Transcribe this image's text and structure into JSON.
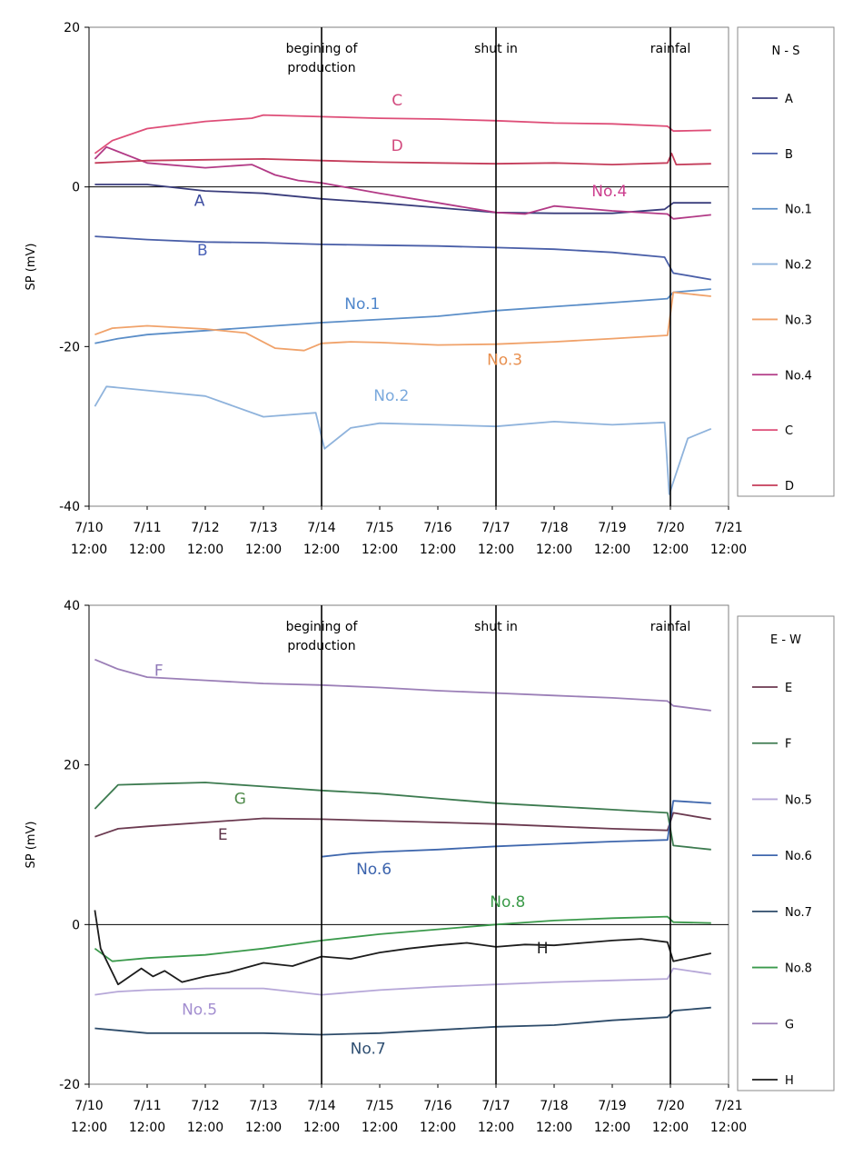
{
  "chart_data": [
    {
      "type": "line",
      "name": "N-S",
      "title": "",
      "xlabel": "",
      "ylabel": "SP (mV)",
      "ylim": [
        -40,
        20
      ],
      "yticks": [
        "20",
        "0",
        "-20",
        "-40"
      ],
      "xlim": [
        0,
        11
      ],
      "x_unit": "days from 7/10 12:00",
      "xticks": [
        {
          "date": "7/10",
          "time": "12:00"
        },
        {
          "date": "7/11",
          "time": "12:00"
        },
        {
          "date": "7/12",
          "time": "12:00"
        },
        {
          "date": "7/13",
          "time": "12:00"
        },
        {
          "date": "7/14",
          "time": "12:00"
        },
        {
          "date": "7/15",
          "time": "12:00"
        },
        {
          "date": "7/16",
          "time": "12:00"
        },
        {
          "date": "7/17",
          "time": "12:00"
        },
        {
          "date": "7/18",
          "time": "12:00"
        },
        {
          "date": "7/19",
          "time": "12:00"
        },
        {
          "date": "7/20",
          "time": "12:00"
        },
        {
          "date": "7/21",
          "time": "12:00"
        }
      ],
      "events": [
        {
          "x": 4,
          "label": [
            "begining of",
            "production"
          ]
        },
        {
          "x": 7,
          "label": [
            "shut in"
          ]
        },
        {
          "x": 10,
          "label": [
            "rainfal"
          ]
        }
      ],
      "legend": {
        "title": "N - S",
        "placement": "right"
      },
      "series": [
        {
          "name": "A",
          "color": "#3a3d7c",
          "x": [
            0.1,
            1,
            2,
            3,
            4,
            5,
            6,
            7,
            8,
            9,
            9.9,
            10.05,
            10.7
          ],
          "y": [
            0.3,
            0.3,
            -0.5,
            -0.8,
            -1.5,
            -2,
            -2.6,
            -3.2,
            -3.3,
            -3.3,
            -2.8,
            -2,
            -2
          ]
        },
        {
          "name": "B",
          "color": "#4a5fa8",
          "x": [
            0.1,
            1,
            2,
            3,
            4,
            5,
            6,
            7,
            8,
            9,
            9.9,
            10.05,
            10.7
          ],
          "y": [
            -6.2,
            -6.6,
            -6.9,
            -7,
            -7.2,
            -7.3,
            -7.4,
            -7.6,
            -7.8,
            -8.2,
            -8.8,
            -10.8,
            -11.6
          ]
        },
        {
          "name": "No.1",
          "color": "#5b8ec8",
          "x": [
            0.1,
            0.5,
            1,
            2,
            3,
            4,
            5,
            6,
            7,
            8,
            9,
            9.95,
            10.05,
            10.7
          ],
          "y": [
            -19.6,
            -19,
            -18.5,
            -18,
            -17.5,
            -17,
            -16.6,
            -16.2,
            -15.5,
            -15,
            -14.5,
            -14,
            -13.2,
            -12.8
          ]
        },
        {
          "name": "No.2",
          "color": "#8fb3dc",
          "x": [
            0.1,
            0.3,
            1,
            2,
            3,
            3.9,
            4.05,
            4.5,
            5,
            6,
            7,
            8,
            9,
            9.9,
            9.98,
            10.3,
            10.7
          ],
          "y": [
            -27.5,
            -25,
            -25.5,
            -26.2,
            -28.8,
            -28.3,
            -32.8,
            -30.2,
            -29.6,
            -29.8,
            -30,
            -29.4,
            -29.8,
            -29.5,
            -38.5,
            -31.5,
            -30.3
          ]
        },
        {
          "name": "No.3",
          "color": "#f0a26a",
          "x": [
            0.1,
            0.4,
            1,
            2,
            2.7,
            3.2,
            3.7,
            4,
            4.5,
            5,
            6,
            7,
            8,
            9,
            9.95,
            10.05,
            10.7
          ],
          "y": [
            -18.5,
            -17.7,
            -17.4,
            -17.8,
            -18.3,
            -20.2,
            -20.5,
            -19.6,
            -19.4,
            -19.5,
            -19.8,
            -19.7,
            -19.4,
            -19,
            -18.6,
            -13.2,
            -13.7
          ]
        },
        {
          "name": "No.4",
          "color": "#b23a86",
          "x": [
            0.1,
            0.3,
            1,
            2,
            2.8,
            3.2,
            3.6,
            4,
            5,
            6,
            7,
            7.5,
            8,
            9,
            9.95,
            10.05,
            10.7
          ],
          "y": [
            3.5,
            5,
            3,
            2.4,
            2.8,
            1.5,
            0.8,
            0.5,
            -0.8,
            -2,
            -3.2,
            -3.4,
            -2.4,
            -3,
            -3.4,
            -4,
            -3.5
          ]
        },
        {
          "name": "C",
          "color": "#de4e78",
          "x": [
            0.1,
            0.4,
            1,
            2,
            2.8,
            3,
            4,
            5,
            6,
            7,
            8,
            9,
            9.95,
            10.05,
            10.7
          ],
          "y": [
            4.2,
            5.8,
            7.3,
            8.2,
            8.6,
            9,
            8.8,
            8.6,
            8.5,
            8.3,
            8,
            7.9,
            7.6,
            7,
            7.1
          ]
        },
        {
          "name": "D",
          "color": "#c43c5a",
          "x": [
            0.1,
            1,
            2,
            3,
            4,
            5,
            6,
            7,
            8,
            9,
            9.95,
            10.02,
            10.1,
            10.7
          ],
          "y": [
            3,
            3.3,
            3.4,
            3.5,
            3.3,
            3.1,
            3,
            2.9,
            3,
            2.8,
            3,
            4.2,
            2.8,
            2.9
          ]
        }
      ],
      "labels": [
        {
          "text": "C",
          "x": 5.3,
          "y": 10.2,
          "color": "#d24a7e"
        },
        {
          "text": "D",
          "x": 5.3,
          "y": 4.5,
          "color": "#d24a7e"
        },
        {
          "text": "A",
          "x": 1.9,
          "y": -2.4,
          "color": "#3c4ca0"
        },
        {
          "text": "B",
          "x": 1.95,
          "y": -8.6,
          "color": "#4a62b8"
        },
        {
          "text": "No.4",
          "x": 8.95,
          "y": -1.2,
          "color": "#cc3e8e"
        },
        {
          "text": "No.1",
          "x": 4.7,
          "y": -15.3,
          "color": "#4f86cb"
        },
        {
          "text": "No.3",
          "x": 7.15,
          "y": -22.3,
          "color": "#e88f4e"
        },
        {
          "text": "No.2",
          "x": 5.2,
          "y": -26.8,
          "color": "#7aa9dd"
        }
      ]
    },
    {
      "type": "line",
      "name": "E-W",
      "title": "",
      "xlabel": "",
      "ylabel": "SP (mV)",
      "ylim": [
        -20,
        40
      ],
      "yticks": [
        "40",
        "20",
        "0",
        "-20"
      ],
      "xlim": [
        0,
        11
      ],
      "x_unit": "days from 7/10 12:00",
      "xticks": [
        {
          "date": "7/10",
          "time": "12:00"
        },
        {
          "date": "7/11",
          "time": "12:00"
        },
        {
          "date": "7/12",
          "time": "12:00"
        },
        {
          "date": "7/13",
          "time": "12:00"
        },
        {
          "date": "7/14",
          "time": "12:00"
        },
        {
          "date": "7/15",
          "time": "12:00"
        },
        {
          "date": "7/16",
          "time": "12:00"
        },
        {
          "date": "7/17",
          "time": "12:00"
        },
        {
          "date": "7/18",
          "time": "12:00"
        },
        {
          "date": "7/19",
          "time": "12:00"
        },
        {
          "date": "7/20",
          "time": "12:00"
        },
        {
          "date": "7/21",
          "time": "12:00"
        }
      ],
      "events": [
        {
          "x": 4,
          "label": [
            "begining of",
            "production"
          ]
        },
        {
          "x": 7,
          "label": [
            "shut in"
          ]
        },
        {
          "x": 10,
          "label": [
            "rainfal"
          ]
        }
      ],
      "legend": {
        "title": "E - W",
        "placement": "right"
      },
      "series": [
        {
          "name": "E",
          "color": "#6b3a50",
          "x": [
            0.1,
            0.5,
            1,
            2,
            3,
            4,
            5,
            6,
            7,
            8,
            9,
            9.95,
            10.05,
            10.7
          ],
          "y": [
            11,
            12,
            12.3,
            12.8,
            13.3,
            13.2,
            13,
            12.8,
            12.6,
            12.3,
            12,
            11.8,
            14,
            13.2
          ]
        },
        {
          "name": "F",
          "color": "#3d7b50",
          "x": [
            0.1,
            0.5,
            1,
            2,
            3,
            4,
            5,
            6,
            7,
            8,
            9,
            9.95,
            10.05,
            10.7
          ],
          "y": [
            14.5,
            17.5,
            17.6,
            17.8,
            17.3,
            16.8,
            16.4,
            15.8,
            15.2,
            14.8,
            14.4,
            14,
            9.9,
            9.4
          ]
        },
        {
          "name": "No.5",
          "color": "#b6a7d8",
          "x": [
            0.1,
            0.5,
            1,
            2,
            3,
            4,
            5,
            6,
            7,
            8,
            9,
            9.95,
            10.05,
            10.7
          ],
          "y": [
            -8.8,
            -8.4,
            -8.2,
            -8,
            -8,
            -8.8,
            -8.2,
            -7.8,
            -7.5,
            -7.2,
            -7,
            -6.8,
            -5.5,
            -6.2
          ]
        },
        {
          "name": "No.6",
          "color": "#3f67ad",
          "x": [
            4,
            4.5,
            5,
            6,
            7,
            8,
            9,
            9.95,
            10.05,
            10.7
          ],
          "y": [
            8.5,
            8.9,
            9.1,
            9.4,
            9.8,
            10.1,
            10.4,
            10.6,
            15.5,
            15.2
          ]
        },
        {
          "name": "No.7",
          "color": "#2e4c6a",
          "x": [
            0.1,
            1,
            2,
            3,
            4,
            5,
            6,
            7,
            8,
            9,
            9.95,
            10.05,
            10.7
          ],
          "y": [
            -13,
            -13.6,
            -13.6,
            -13.6,
            -13.8,
            -13.6,
            -13.2,
            -12.8,
            -12.6,
            -12,
            -11.6,
            -10.8,
            -10.4
          ]
        },
        {
          "name": "No.8",
          "color": "#3b9a4c",
          "x": [
            0.1,
            0.4,
            1,
            2,
            3,
            4,
            5,
            6,
            7,
            8,
            9,
            9.95,
            10.05,
            10.7
          ],
          "y": [
            -3,
            -4.6,
            -4.2,
            -3.8,
            -3,
            -2,
            -1.2,
            -0.6,
            0,
            0.5,
            0.8,
            1,
            0.3,
            0.2
          ]
        },
        {
          "name": "G",
          "color": "#9b7fb7",
          "x": [
            0.1,
            0.5,
            1,
            2,
            3,
            4,
            5,
            6,
            7,
            8,
            9,
            9.95,
            10.05,
            10.7
          ],
          "y": [
            33.2,
            32,
            31,
            30.6,
            30.2,
            30,
            29.7,
            29.3,
            29,
            28.7,
            28.4,
            28,
            27.4,
            26.8
          ]
        },
        {
          "name": "H",
          "color": "#1c1c1c",
          "x": [
            0.1,
            0.2,
            0.5,
            0.9,
            1.1,
            1.3,
            1.6,
            2,
            2.4,
            3,
            3.5,
            4,
            4.5,
            5,
            5.5,
            6,
            6.5,
            7,
            7.5,
            8,
            8.5,
            9,
            9.5,
            9.95,
            10.05,
            10.7
          ],
          "y": [
            1.8,
            -3,
            -7.5,
            -5.5,
            -6.5,
            -5.8,
            -7.2,
            -6.5,
            -6,
            -4.8,
            -5.2,
            -4,
            -4.3,
            -3.5,
            -3,
            -2.6,
            -2.3,
            -2.8,
            -2.5,
            -2.6,
            -2.3,
            -2,
            -1.8,
            -2.2,
            -4.6,
            -3.6
          ]
        }
      ],
      "labels": [
        {
          "text": "F",
          "x": 1.2,
          "y": 31.2,
          "color": "#8f78b8"
        },
        {
          "text": "G",
          "x": 2.6,
          "y": 15.1,
          "color": "#4f8a4a"
        },
        {
          "text": "E",
          "x": 2.3,
          "y": 10.6,
          "color": "#5c3248"
        },
        {
          "text": "No.6",
          "x": 4.9,
          "y": 6.3,
          "color": "#3b63ad"
        },
        {
          "text": "No.8",
          "x": 7.2,
          "y": 2.2,
          "color": "#3a9a48"
        },
        {
          "text": "H",
          "x": 7.8,
          "y": -3.6,
          "color": "#1c1c1c"
        },
        {
          "text": "No.5",
          "x": 1.9,
          "y": -11.3,
          "color": "#a38ed0"
        },
        {
          "text": "No.7",
          "x": 4.8,
          "y": -16.2,
          "color": "#2f4f72"
        }
      ]
    }
  ]
}
